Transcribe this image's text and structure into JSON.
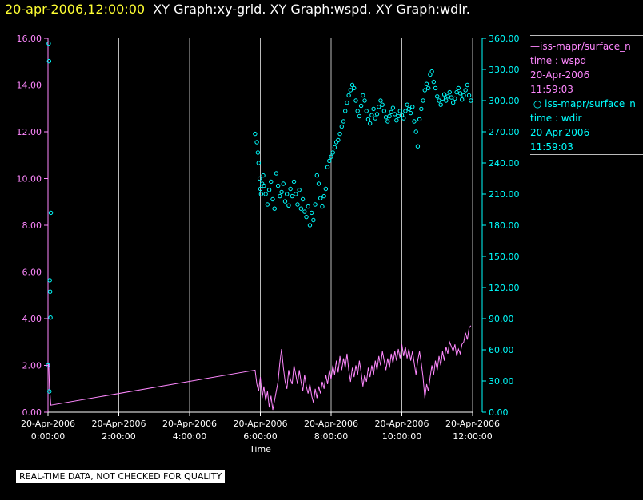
{
  "title": {
    "date": "20-apr-2006,12:00:00",
    "rest": "XY Graph:xy-grid.  XY Graph:wspd.  XY Graph:wdir."
  },
  "legend": {
    "series1": {
      "line1": "iss-mapr/surface_n",
      "line2": "time : wspd",
      "line3": "20-Apr-2006",
      "line4": "11:59:03"
    },
    "series2": {
      "line1": "iss-mapr/surface_n",
      "line2": "time : wdir",
      "line3": "20-Apr-2006",
      "line4": "11:59:03"
    }
  },
  "disclaimer": "REAL-TIME DATA, NOT CHECKED FOR QUALITY",
  "colors": {
    "wspd": "#ff88ff",
    "wdir": "#00ffff",
    "title_date": "#ffff33",
    "grid": "#bbbbbb"
  },
  "chart_data": {
    "type": "scatter",
    "xlabel": "Time",
    "x_range_hours": [
      0,
      12
    ],
    "x_ticks": [
      {
        "date": "20-Apr-2006",
        "time": "0:00:00",
        "h": 0
      },
      {
        "date": "20-Apr-2006",
        "time": "2:00:00",
        "h": 2
      },
      {
        "date": "20-Apr-2006",
        "time": "4:00:00",
        "h": 4
      },
      {
        "date": "20-Apr-2006",
        "time": "6:00:00",
        "h": 6
      },
      {
        "date": "20-Apr-2006",
        "time": "8:00:00",
        "h": 8
      },
      {
        "date": "20-Apr-2006",
        "time": "10:00:00",
        "h": 10
      },
      {
        "date": "20-Apr-2006",
        "time": "12:00:00",
        "h": 12
      }
    ],
    "y_left": {
      "range": [
        0,
        16
      ],
      "ticks": [
        "0.00",
        "2.00",
        "4.00",
        "6.00",
        "8.00",
        "10.00",
        "12.00",
        "14.00",
        "16.00"
      ]
    },
    "y_right": {
      "range": [
        0,
        360
      ],
      "ticks": [
        "0.00",
        "30.00",
        "60.00",
        "90.00",
        "120.00",
        "150.00",
        "180.00",
        "210.00",
        "240.00",
        "270.00",
        "300.00",
        "330.00",
        "360.00"
      ]
    },
    "grid": true,
    "series": [
      {
        "axis": "left",
        "style": "line",
        "points": [
          [
            0.0,
            2.0
          ],
          [
            0.02,
            2.1
          ],
          [
            0.04,
            1.0
          ],
          [
            0.06,
            0.7
          ],
          [
            0.08,
            0.3
          ],
          [
            5.85,
            1.8
          ],
          [
            5.9,
            1.2
          ],
          [
            5.95,
            0.9
          ],
          [
            6.0,
            1.5
          ],
          [
            6.05,
            0.6
          ],
          [
            6.1,
            1.1
          ],
          [
            6.15,
            0.5
          ],
          [
            6.2,
            0.9
          ],
          [
            6.25,
            0.2
          ],
          [
            6.3,
            0.7
          ],
          [
            6.35,
            0.1
          ],
          [
            6.4,
            0.5
          ],
          [
            6.5,
            1.3
          ],
          [
            6.55,
            2.1
          ],
          [
            6.6,
            2.7
          ],
          [
            6.65,
            1.9
          ],
          [
            6.7,
            1.3
          ],
          [
            6.75,
            1.0
          ],
          [
            6.8,
            1.8
          ],
          [
            6.85,
            1.4
          ],
          [
            6.9,
            1.2
          ],
          [
            6.95,
            2.0
          ],
          [
            7.0,
            1.6
          ],
          [
            7.05,
            1.2
          ],
          [
            7.1,
            1.8
          ],
          [
            7.15,
            1.3
          ],
          [
            7.2,
            0.9
          ],
          [
            7.25,
            1.6
          ],
          [
            7.3,
            1.1
          ],
          [
            7.35,
            0.8
          ],
          [
            7.4,
            1.2
          ],
          [
            7.45,
            0.7
          ],
          [
            7.5,
            0.4
          ],
          [
            7.55,
            1.0
          ],
          [
            7.6,
            0.6
          ],
          [
            7.65,
            1.1
          ],
          [
            7.7,
            0.8
          ],
          [
            7.75,
            1.3
          ],
          [
            7.8,
            1.0
          ],
          [
            7.85,
            1.6
          ],
          [
            7.9,
            1.2
          ],
          [
            7.95,
            1.8
          ],
          [
            8.0,
            1.4
          ],
          [
            8.05,
            2.0
          ],
          [
            8.1,
            1.6
          ],
          [
            8.15,
            2.2
          ],
          [
            8.2,
            1.7
          ],
          [
            8.25,
            2.4
          ],
          [
            8.3,
            1.8
          ],
          [
            8.35,
            2.3
          ],
          [
            8.4,
            1.9
          ],
          [
            8.45,
            2.5
          ],
          [
            8.5,
            1.8
          ],
          [
            8.55,
            1.3
          ],
          [
            8.6,
            1.9
          ],
          [
            8.65,
            1.5
          ],
          [
            8.7,
            2.0
          ],
          [
            8.75,
            1.6
          ],
          [
            8.8,
            2.2
          ],
          [
            8.85,
            1.7
          ],
          [
            8.9,
            1.1
          ],
          [
            8.95,
            1.6
          ],
          [
            9.0,
            1.3
          ],
          [
            9.05,
            1.9
          ],
          [
            9.1,
            1.5
          ],
          [
            9.15,
            2.0
          ],
          [
            9.2,
            1.6
          ],
          [
            9.25,
            2.2
          ],
          [
            9.3,
            1.8
          ],
          [
            9.35,
            2.4
          ],
          [
            9.4,
            2.0
          ],
          [
            9.45,
            2.6
          ],
          [
            9.5,
            2.2
          ],
          [
            9.55,
            1.8
          ],
          [
            9.6,
            2.3
          ],
          [
            9.65,
            1.9
          ],
          [
            9.7,
            2.5
          ],
          [
            9.75,
            2.1
          ],
          [
            9.8,
            2.6
          ],
          [
            9.85,
            2.2
          ],
          [
            9.9,
            2.7
          ],
          [
            9.95,
            2.3
          ],
          [
            10.0,
            2.9
          ],
          [
            10.05,
            2.4
          ],
          [
            10.1,
            2.8
          ],
          [
            10.15,
            2.3
          ],
          [
            10.2,
            2.7
          ],
          [
            10.25,
            2.2
          ],
          [
            10.3,
            2.6
          ],
          [
            10.35,
            2.1
          ],
          [
            10.4,
            1.6
          ],
          [
            10.45,
            2.2
          ],
          [
            10.5,
            2.6
          ],
          [
            10.55,
            2.1
          ],
          [
            10.6,
            1.5
          ],
          [
            10.65,
            0.6
          ],
          [
            10.7,
            1.2
          ],
          [
            10.75,
            0.9
          ],
          [
            10.8,
            1.5
          ],
          [
            10.85,
            2.0
          ],
          [
            10.9,
            1.6
          ],
          [
            10.95,
            2.2
          ],
          [
            11.0,
            1.8
          ],
          [
            11.05,
            2.4
          ],
          [
            11.1,
            2.0
          ],
          [
            11.15,
            2.6
          ],
          [
            11.2,
            2.2
          ],
          [
            11.25,
            2.8
          ],
          [
            11.3,
            2.5
          ],
          [
            11.35,
            3.0
          ],
          [
            11.4,
            2.8
          ],
          [
            11.45,
            2.6
          ],
          [
            11.5,
            2.9
          ],
          [
            11.55,
            2.4
          ],
          [
            11.6,
            2.7
          ],
          [
            11.65,
            2.5
          ],
          [
            11.7,
            2.9
          ],
          [
            11.75,
            3.0
          ],
          [
            11.8,
            3.4
          ],
          [
            11.85,
            3.1
          ],
          [
            11.9,
            3.6
          ],
          [
            11.95,
            3.7
          ]
        ]
      },
      {
        "axis": "right",
        "style": "circles",
        "points": [
          [
            0.0,
            45
          ],
          [
            0.02,
            355
          ],
          [
            0.03,
            338
          ],
          [
            0.04,
            20
          ],
          [
            0.05,
            127
          ],
          [
            0.06,
            116
          ],
          [
            0.07,
            91
          ],
          [
            0.08,
            192
          ],
          [
            5.85,
            268
          ],
          [
            5.9,
            260
          ],
          [
            5.93,
            250
          ],
          [
            5.95,
            240
          ],
          [
            5.98,
            225
          ],
          [
            6.0,
            215
          ],
          [
            6.02,
            210
          ],
          [
            6.05,
            220
          ],
          [
            6.08,
            228
          ],
          [
            6.1,
            218
          ],
          [
            6.15,
            210
          ],
          [
            6.2,
            200
          ],
          [
            6.25,
            214
          ],
          [
            6.3,
            222
          ],
          [
            6.35,
            205
          ],
          [
            6.4,
            196
          ],
          [
            6.45,
            230
          ],
          [
            6.5,
            218
          ],
          [
            6.55,
            208
          ],
          [
            6.6,
            212
          ],
          [
            6.65,
            220
          ],
          [
            6.7,
            203
          ],
          [
            6.75,
            210
          ],
          [
            6.8,
            199
          ],
          [
            6.85,
            215
          ],
          [
            6.9,
            208
          ],
          [
            6.95,
            222
          ],
          [
            7.0,
            210
          ],
          [
            7.05,
            200
          ],
          [
            7.1,
            214
          ],
          [
            7.15,
            196
          ],
          [
            7.2,
            205
          ],
          [
            7.25,
            193
          ],
          [
            7.3,
            188
          ],
          [
            7.35,
            198
          ],
          [
            7.4,
            180
          ],
          [
            7.45,
            192
          ],
          [
            7.5,
            185
          ],
          [
            7.55,
            200
          ],
          [
            7.6,
            228
          ],
          [
            7.65,
            220
          ],
          [
            7.7,
            206
          ],
          [
            7.75,
            198
          ],
          [
            7.8,
            208
          ],
          [
            7.85,
            215
          ],
          [
            7.9,
            236
          ],
          [
            7.95,
            242
          ],
          [
            8.0,
            246
          ],
          [
            8.05,
            250
          ],
          [
            8.1,
            255
          ],
          [
            8.15,
            260
          ],
          [
            8.2,
            262
          ],
          [
            8.25,
            268
          ],
          [
            8.3,
            275
          ],
          [
            8.35,
            280
          ],
          [
            8.4,
            290
          ],
          [
            8.45,
            298
          ],
          [
            8.5,
            305
          ],
          [
            8.55,
            310
          ],
          [
            8.6,
            315
          ],
          [
            8.65,
            312
          ],
          [
            8.7,
            300
          ],
          [
            8.75,
            290
          ],
          [
            8.8,
            285
          ],
          [
            8.85,
            295
          ],
          [
            8.9,
            305
          ],
          [
            8.95,
            300
          ],
          [
            9.0,
            290
          ],
          [
            9.05,
            282
          ],
          [
            9.1,
            278
          ],
          [
            9.15,
            286
          ],
          [
            9.2,
            292
          ],
          [
            9.25,
            283
          ],
          [
            9.3,
            287
          ],
          [
            9.35,
            294
          ],
          [
            9.4,
            300
          ],
          [
            9.45,
            296
          ],
          [
            9.5,
            290
          ],
          [
            9.55,
            284
          ],
          [
            9.6,
            280
          ],
          [
            9.65,
            285
          ],
          [
            9.7,
            289
          ],
          [
            9.75,
            293
          ],
          [
            9.8,
            287
          ],
          [
            9.85,
            281
          ],
          [
            9.9,
            285
          ],
          [
            9.95,
            290
          ],
          [
            10.0,
            286
          ],
          [
            10.05,
            283
          ],
          [
            10.1,
            290
          ],
          [
            10.15,
            296
          ],
          [
            10.2,
            292
          ],
          [
            10.25,
            288
          ],
          [
            10.3,
            294
          ],
          [
            10.35,
            280
          ],
          [
            10.4,
            270
          ],
          [
            10.45,
            256
          ],
          [
            10.5,
            282
          ],
          [
            10.55,
            292
          ],
          [
            10.6,
            300
          ],
          [
            10.65,
            310
          ],
          [
            10.7,
            316
          ],
          [
            10.75,
            312
          ],
          [
            10.8,
            325
          ],
          [
            10.85,
            328
          ],
          [
            10.9,
            318
          ],
          [
            10.95,
            312
          ],
          [
            11.0,
            304
          ],
          [
            11.05,
            300
          ],
          [
            11.1,
            296
          ],
          [
            11.15,
            302
          ],
          [
            11.2,
            306
          ],
          [
            11.25,
            300
          ],
          [
            11.3,
            304
          ],
          [
            11.35,
            308
          ],
          [
            11.4,
            303
          ],
          [
            11.45,
            298
          ],
          [
            11.5,
            302
          ],
          [
            11.55,
            308
          ],
          [
            11.6,
            312
          ],
          [
            11.65,
            307
          ],
          [
            11.7,
            301
          ],
          [
            11.75,
            305
          ],
          [
            11.8,
            310
          ],
          [
            11.85,
            315
          ],
          [
            11.9,
            305
          ],
          [
            11.95,
            300
          ]
        ]
      }
    ]
  }
}
